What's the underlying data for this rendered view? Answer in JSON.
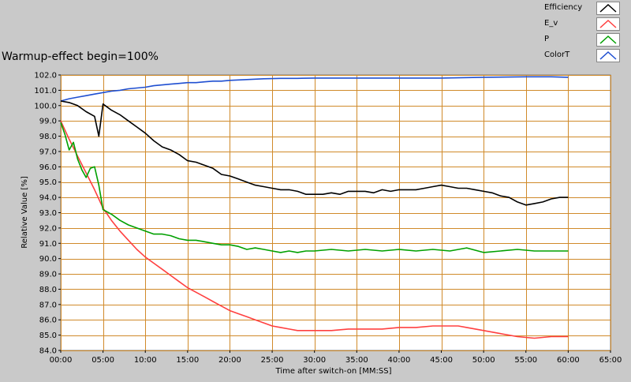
{
  "chart_data": {
    "type": "line",
    "title": "Warmup-effect begin=100%",
    "xlabel": "Time after switch-on [MM:SS]",
    "ylabel": "Relative Value [%]",
    "xlim": [
      0,
      65
    ],
    "ylim": [
      84.0,
      102.0
    ],
    "x_ticks": [
      "00:00",
      "05:00",
      "10:00",
      "15:00",
      "20:00",
      "25:00",
      "30:00",
      "35:00",
      "40:00",
      "45:00",
      "50:00",
      "55:00",
      "60:00",
      "65:00"
    ],
    "y_ticks": [
      "84.0",
      "85.0",
      "86.0",
      "87.0",
      "88.0",
      "89.0",
      "90.0",
      "91.0",
      "92.0",
      "93.0",
      "94.0",
      "95.0",
      "96.0",
      "97.0",
      "98.0",
      "99.0",
      "100.0",
      "101.0",
      "102.0"
    ],
    "grid": true,
    "legend_position": "top-right",
    "series": [
      {
        "name": "Efficiency",
        "color": "#000000",
        "x": [
          0,
          1,
          2,
          3,
          4,
          4.5,
          5,
          5.5,
          6,
          7,
          8,
          9,
          10,
          11,
          12,
          13,
          14,
          15,
          16,
          17,
          18,
          19,
          20,
          21,
          22,
          23,
          24,
          25,
          26,
          27,
          28,
          29,
          30,
          31,
          32,
          33,
          34,
          35,
          36,
          37,
          38,
          39,
          40,
          41,
          42,
          43,
          44,
          45,
          46,
          47,
          48,
          49,
          50,
          51,
          52,
          53,
          54,
          55,
          56,
          57,
          58,
          59,
          60
        ],
        "y": [
          100.3,
          100.2,
          100.0,
          99.6,
          99.3,
          98.0,
          100.1,
          99.9,
          99.7,
          99.4,
          99.0,
          98.6,
          98.2,
          97.7,
          97.3,
          97.1,
          96.8,
          96.4,
          96.3,
          96.1,
          95.9,
          95.5,
          95.4,
          95.2,
          95.0,
          94.8,
          94.7,
          94.6,
          94.5,
          94.5,
          94.4,
          94.2,
          94.2,
          94.2,
          94.3,
          94.2,
          94.4,
          94.4,
          94.4,
          94.3,
          94.5,
          94.4,
          94.5,
          94.5,
          94.5,
          94.6,
          94.7,
          94.8,
          94.7,
          94.6,
          94.6,
          94.5,
          94.4,
          94.3,
          94.1,
          94.0,
          93.7,
          93.5,
          93.6,
          93.7,
          93.9,
          94.0,
          94.0
        ]
      },
      {
        "name": "E_v",
        "color": "#ff4040",
        "x": [
          0,
          1,
          2,
          3,
          4,
          5,
          6,
          7,
          8,
          9,
          10,
          11,
          12,
          13,
          14,
          15,
          16,
          17,
          18,
          19,
          20,
          21,
          22,
          23,
          24,
          25,
          26,
          27,
          28,
          29,
          30,
          32,
          34,
          36,
          38,
          40,
          42,
          44,
          46,
          47,
          48,
          50,
          52,
          54,
          56,
          58,
          60
        ],
        "y": [
          99.0,
          97.8,
          96.7,
          95.6,
          94.5,
          93.3,
          92.5,
          91.8,
          91.2,
          90.6,
          90.1,
          89.7,
          89.3,
          88.9,
          88.5,
          88.1,
          87.8,
          87.5,
          87.2,
          86.9,
          86.6,
          86.4,
          86.2,
          86.0,
          85.8,
          85.6,
          85.5,
          85.4,
          85.3,
          85.3,
          85.3,
          85.3,
          85.4,
          85.4,
          85.4,
          85.5,
          85.5,
          85.6,
          85.6,
          85.6,
          85.5,
          85.3,
          85.1,
          84.9,
          84.8,
          84.9,
          84.9
        ]
      },
      {
        "name": "P",
        "color": "#00a000",
        "x": [
          0,
          0.5,
          1,
          1.5,
          2,
          2.5,
          3,
          3.5,
          4,
          4.5,
          5,
          6,
          7,
          8,
          9,
          10,
          11,
          12,
          13,
          14,
          15,
          16,
          17,
          18,
          19,
          20,
          21,
          22,
          23,
          24,
          25,
          26,
          27,
          28,
          29,
          30,
          32,
          34,
          36,
          38,
          40,
          42,
          44,
          46,
          48,
          50,
          52,
          54,
          56,
          58,
          60
        ],
        "y": [
          98.9,
          98.1,
          97.1,
          97.6,
          96.5,
          95.8,
          95.3,
          95.9,
          96.0,
          94.8,
          93.2,
          92.9,
          92.5,
          92.2,
          92.0,
          91.8,
          91.6,
          91.6,
          91.5,
          91.3,
          91.2,
          91.2,
          91.1,
          91.0,
          90.9,
          90.9,
          90.8,
          90.6,
          90.7,
          90.6,
          90.5,
          90.4,
          90.5,
          90.4,
          90.5,
          90.5,
          90.6,
          90.5,
          90.6,
          90.5,
          90.6,
          90.5,
          90.6,
          90.5,
          90.7,
          90.4,
          90.5,
          90.6,
          90.5,
          90.5,
          90.5
        ]
      },
      {
        "name": "ColorT",
        "color": "#1f4fd1",
        "x": [
          0,
          1,
          2,
          3,
          4,
          5,
          6,
          7,
          8,
          9,
          10,
          11,
          12,
          13,
          14,
          15,
          16,
          17,
          18,
          19,
          20,
          22,
          24,
          26,
          28,
          30,
          35,
          40,
          45,
          50,
          55,
          58,
          60
        ],
        "y": [
          100.3,
          100.45,
          100.55,
          100.65,
          100.75,
          100.85,
          100.95,
          101.0,
          101.1,
          101.15,
          101.2,
          101.3,
          101.35,
          101.4,
          101.45,
          101.5,
          101.5,
          101.55,
          101.6,
          101.6,
          101.65,
          101.7,
          101.75,
          101.78,
          101.78,
          101.8,
          101.8,
          101.8,
          101.8,
          101.85,
          101.88,
          101.88,
          101.85
        ]
      }
    ]
  }
}
